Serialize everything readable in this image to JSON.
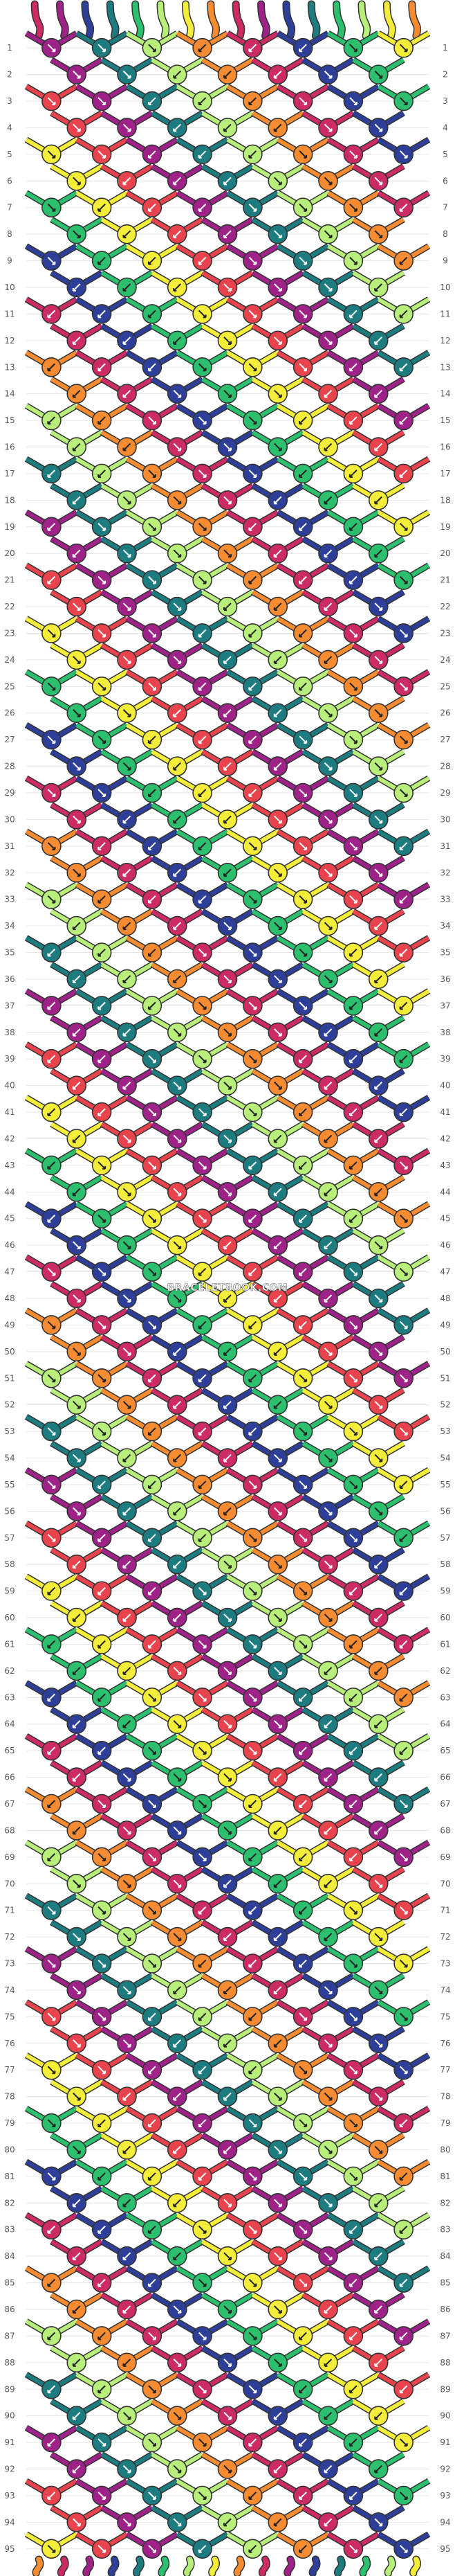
{
  "watermark": "BRACELETBOOK.COM",
  "row_count": 95,
  "palette": {
    "pink": "#cc2b66",
    "yellow": "#f4ee3a",
    "purple": "#9e2288",
    "navy": "#2e3f9a",
    "teal": "#1d7c80",
    "green": "#2bbf6e",
    "lime": "#b8ef7a",
    "orange": "#f68b32",
    "red": "#e9444d"
  },
  "color_cycle": [
    "pink",
    "purple",
    "navy",
    "teal",
    "green",
    "lime",
    "yellow",
    "orange",
    "red"
  ],
  "string_colors": [
    "pink",
    "purple",
    "navy",
    "teal",
    "green",
    "lime",
    "yellow",
    "orange",
    "pink",
    "purple",
    "navy",
    "teal",
    "green",
    "lime",
    "yellow",
    "orange"
  ]
}
